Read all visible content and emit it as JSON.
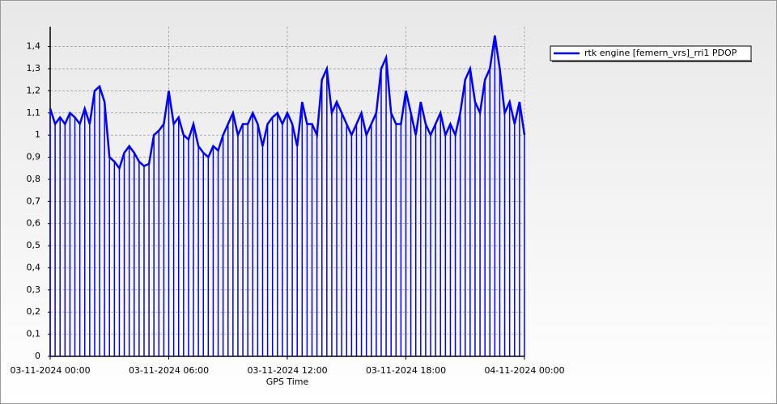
{
  "chart_data": {
    "type": "line",
    "x_label": "GPS Time",
    "x": [
      "03-11-2024 00:00",
      "03-11-2024 00:15",
      "03-11-2024 00:30",
      "03-11-2024 00:45",
      "03-11-2024 01:00",
      "03-11-2024 01:15",
      "03-11-2024 01:30",
      "03-11-2024 01:45",
      "03-11-2024 02:00",
      "03-11-2024 02:15",
      "03-11-2024 02:30",
      "03-11-2024 02:45",
      "03-11-2024 03:00",
      "03-11-2024 03:15",
      "03-11-2024 03:30",
      "03-11-2024 03:45",
      "03-11-2024 04:00",
      "03-11-2024 04:15",
      "03-11-2024 04:30",
      "03-11-2024 04:45",
      "03-11-2024 05:00",
      "03-11-2024 05:15",
      "03-11-2024 05:30",
      "03-11-2024 05:45",
      "03-11-2024 06:00",
      "03-11-2024 06:15",
      "03-11-2024 06:30",
      "03-11-2024 06:45",
      "03-11-2024 07:00",
      "03-11-2024 07:15",
      "03-11-2024 07:30",
      "03-11-2024 07:45",
      "03-11-2024 08:00",
      "03-11-2024 08:15",
      "03-11-2024 08:30",
      "03-11-2024 08:45",
      "03-11-2024 09:00",
      "03-11-2024 09:15",
      "03-11-2024 09:30",
      "03-11-2024 09:45",
      "03-11-2024 10:00",
      "03-11-2024 10:15",
      "03-11-2024 10:30",
      "03-11-2024 10:45",
      "03-11-2024 11:00",
      "03-11-2024 11:15",
      "03-11-2024 11:30",
      "03-11-2024 11:45",
      "03-11-2024 12:00",
      "03-11-2024 12:15",
      "03-11-2024 12:30",
      "03-11-2024 12:45",
      "03-11-2024 13:00",
      "03-11-2024 13:15",
      "03-11-2024 13:30",
      "03-11-2024 13:45",
      "03-11-2024 14:00",
      "03-11-2024 14:15",
      "03-11-2024 14:30",
      "03-11-2024 14:45",
      "03-11-2024 15:00",
      "03-11-2024 15:15",
      "03-11-2024 15:30",
      "03-11-2024 15:45",
      "03-11-2024 16:00",
      "03-11-2024 16:15",
      "03-11-2024 16:30",
      "03-11-2024 16:45",
      "03-11-2024 17:00",
      "03-11-2024 17:15",
      "03-11-2024 17:30",
      "03-11-2024 17:45",
      "03-11-2024 18:00",
      "03-11-2024 18:15",
      "03-11-2024 18:30",
      "03-11-2024 18:45",
      "03-11-2024 19:00",
      "03-11-2024 19:15",
      "03-11-2024 19:30",
      "03-11-2024 19:45",
      "03-11-2024 20:00",
      "03-11-2024 20:15",
      "03-11-2024 20:30",
      "03-11-2024 20:45",
      "03-11-2024 21:00",
      "03-11-2024 21:15",
      "03-11-2024 21:30",
      "03-11-2024 21:45",
      "03-11-2024 22:00",
      "03-11-2024 22:15",
      "03-11-2024 22:30",
      "03-11-2024 22:45",
      "03-11-2024 23:00",
      "03-11-2024 23:15",
      "03-11-2024 23:30",
      "03-11-2024 23:45",
      "04-11-2024 00:00"
    ],
    "series": [
      {
        "name": "rtk engine [femern_vrs]_rri1 PDOP",
        "color": "#0000ff",
        "values": [
          1.12,
          1.05,
          1.08,
          1.05,
          1.1,
          1.08,
          1.05,
          1.12,
          1.05,
          1.2,
          1.22,
          1.15,
          0.9,
          0.88,
          0.85,
          0.92,
          0.95,
          0.92,
          0.88,
          0.86,
          0.87,
          1.0,
          1.02,
          1.05,
          1.2,
          1.05,
          1.08,
          1.0,
          0.98,
          1.05,
          0.95,
          0.92,
          0.9,
          0.95,
          0.93,
          1.0,
          1.05,
          1.1,
          1.0,
          1.05,
          1.05,
          1.1,
          1.05,
          0.95,
          1.05,
          1.08,
          1.1,
          1.05,
          1.1,
          1.05,
          0.95,
          1.15,
          1.05,
          1.05,
          1.0,
          1.25,
          1.3,
          1.1,
          1.15,
          1.1,
          1.05,
          1.0,
          1.05,
          1.1,
          1.0,
          1.05,
          1.1,
          1.3,
          1.35,
          1.1,
          1.05,
          1.05,
          1.2,
          1.1,
          1.0,
          1.15,
          1.05,
          1.0,
          1.05,
          1.1,
          1.0,
          1.05,
          1.0,
          1.1,
          1.25,
          1.3,
          1.15,
          1.1,
          1.25,
          1.3,
          1.45,
          1.3,
          1.1,
          1.15,
          1.05,
          1.15,
          1.0
        ]
      }
    ],
    "xlim": [
      "03-11-2024 00:00",
      "04-11-2024 00:00"
    ],
    "xticks": [
      "03-11-2024 00:00",
      "03-11-2024 06:00",
      "03-11-2024 12:00",
      "03-11-2024 18:00",
      "04-11-2024 00:00"
    ],
    "ylim": [
      0,
      1.49
    ],
    "yticks": [
      0,
      {
        "value": 0.1,
        "label": "0,1"
      },
      {
        "value": 0.2,
        "label": "0,2"
      },
      {
        "value": 0.3,
        "label": "0,3"
      },
      {
        "value": 0.4,
        "label": "0,4"
      },
      {
        "value": 0.5,
        "label": "0,5"
      },
      {
        "value": 0.6,
        "label": "0,6"
      },
      {
        "value": 0.7,
        "label": "0,7"
      },
      {
        "value": 0.8,
        "label": "0,8"
      },
      {
        "value": 0.9,
        "label": "0,9"
      },
      1,
      {
        "value": 1.1,
        "label": "1,1"
      },
      {
        "value": 1.2,
        "label": "1,2"
      },
      {
        "value": 1.3,
        "label": "1,3"
      },
      {
        "value": 1.4,
        "label": "1,4"
      }
    ],
    "grid": true,
    "legend": "upper right"
  }
}
